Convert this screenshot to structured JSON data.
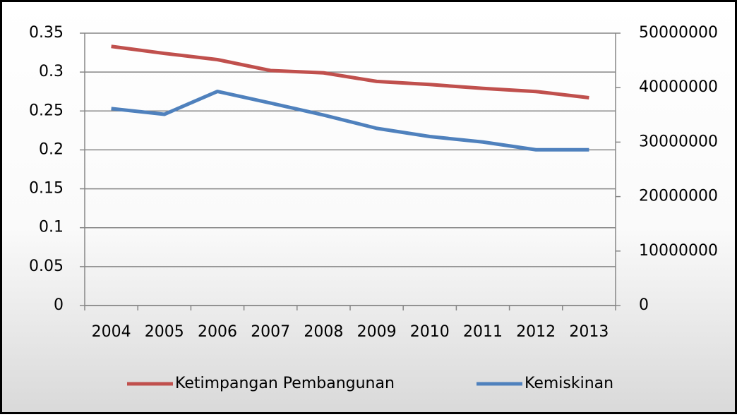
{
  "chart_data": {
    "type": "line",
    "categories": [
      "2004",
      "2005",
      "2006",
      "2007",
      "2008",
      "2009",
      "2010",
      "2011",
      "2012",
      "2013"
    ],
    "series": [
      {
        "name": "Ketimpangan Pembangunan",
        "color": "#c0504d",
        "values": [
          0.333,
          0.324,
          0.316,
          0.302,
          0.299,
          0.288,
          0.284,
          0.279,
          0.275,
          0.267
        ]
      },
      {
        "name": "Kemiskinan",
        "color": "#4f81bd",
        "axis": "y2",
        "values": [
          36150000,
          35100000,
          39300000,
          37170000,
          34960000,
          32530000,
          31020000,
          30020000,
          28590000,
          28600000
        ]
      }
    ],
    "ylim": [
      0,
      0.35
    ],
    "yticks": [
      0,
      0.05,
      0.1,
      0.15,
      0.2,
      0.25,
      0.3,
      0.35
    ],
    "y2lim": [
      0,
      50000000
    ],
    "y2ticks": [
      0,
      10000000,
      20000000,
      30000000,
      40000000,
      50000000
    ],
    "grid": true,
    "legend": "bottom"
  }
}
